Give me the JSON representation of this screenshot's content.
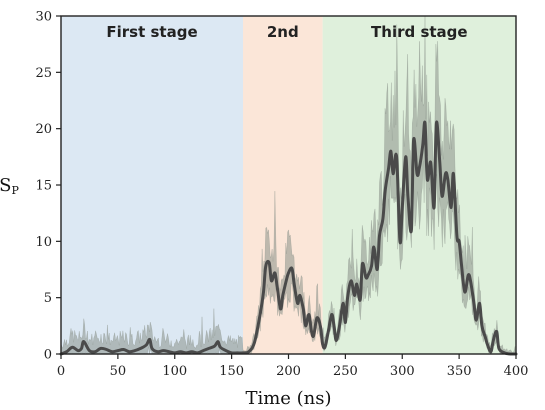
{
  "chart_data": {
    "type": "line",
    "xlabel": "Time (ns)",
    "ylabel": "S",
    "ylabel_sub": "P",
    "xlim": [
      0,
      400
    ],
    "ylim": [
      0,
      30
    ],
    "xticks": [
      0,
      50,
      100,
      150,
      200,
      250,
      300,
      350,
      400
    ],
    "yticks": [
      0,
      5,
      10,
      15,
      20,
      25,
      30
    ],
    "grid": false,
    "stages": [
      {
        "label": "First stage",
        "start": 0,
        "end": 160,
        "color": "#dce8f3"
      },
      {
        "label": "2nd",
        "start": 160,
        "end": 230,
        "color": "#fbe6d8"
      },
      {
        "label": "Third stage",
        "start": 230,
        "end": 400,
        "color": "#dff0dc"
      }
    ],
    "series": [
      {
        "color": "#4a4a4a",
        "band_color": "#8a928a",
        "x": [
          0,
          5,
          10,
          15,
          18,
          20,
          25,
          30,
          35,
          40,
          45,
          50,
          55,
          60,
          65,
          70,
          75,
          78,
          80,
          85,
          90,
          95,
          100,
          105,
          110,
          115,
          120,
          125,
          130,
          135,
          138,
          140,
          145,
          150,
          155,
          160,
          165,
          170,
          175,
          178,
          180,
          183,
          185,
          188,
          190,
          193,
          195,
          198,
          200,
          203,
          205,
          208,
          210,
          213,
          215,
          218,
          220,
          222,
          225,
          228,
          230,
          232,
          235,
          238,
          240,
          242,
          245,
          248,
          250,
          252,
          255,
          258,
          260,
          263,
          265,
          268,
          270,
          273,
          275,
          278,
          280,
          283,
          285,
          288,
          290,
          292,
          295,
          298,
          300,
          303,
          305,
          308,
          310,
          313,
          315,
          318,
          320,
          322,
          325,
          328,
          330,
          333,
          335,
          338,
          340,
          343,
          345,
          348,
          350,
          352,
          355,
          358,
          360,
          363,
          365,
          368,
          370,
          373,
          375,
          378,
          380,
          383,
          385,
          390,
          395,
          400
        ],
        "y": [
          0,
          0.2,
          0.6,
          0.3,
          0.5,
          1.1,
          0.3,
          0.2,
          0.5,
          0.4,
          0.2,
          0.3,
          0.4,
          0.2,
          0.3,
          0.5,
          0.8,
          1.3,
          0.5,
          0.2,
          0.3,
          0.2,
          0.1,
          0.2,
          0.1,
          0.2,
          0.1,
          0.3,
          0.5,
          0.7,
          1.1,
          0.6,
          0.3,
          0.1,
          0.1,
          0.1,
          0.2,
          1.0,
          3.5,
          5.5,
          7.8,
          8.1,
          6.5,
          7.2,
          6.0,
          4.0,
          5.2,
          6.5,
          7.2,
          7.6,
          6.2,
          4.5,
          5.2,
          4.0,
          2.5,
          3.5,
          2.1,
          1.6,
          3.2,
          2.5,
          0.9,
          0.6,
          2.0,
          3.5,
          2.5,
          1.2,
          2.6,
          4.5,
          2.8,
          5.0,
          6.5,
          5.2,
          6.2,
          4.8,
          8.0,
          6.8,
          7.0,
          7.8,
          9.5,
          7.5,
          10.5,
          12.0,
          14.5,
          16.5,
          18.0,
          16.0,
          17.5,
          10.0,
          13.0,
          17.5,
          14.0,
          11.0,
          19.0,
          16.0,
          16.5,
          18.5,
          20.5,
          15.5,
          17.0,
          13.0,
          20.5,
          17.0,
          14.0,
          16.0,
          15.5,
          13.0,
          16.0,
          10.5,
          10.0,
          8.0,
          5.5,
          7.0,
          6.5,
          4.5,
          3.0,
          4.5,
          2.5,
          1.5,
          0.8,
          0.2,
          1.2,
          2.0,
          0.5,
          0.1,
          0,
          0
        ]
      }
    ]
  }
}
